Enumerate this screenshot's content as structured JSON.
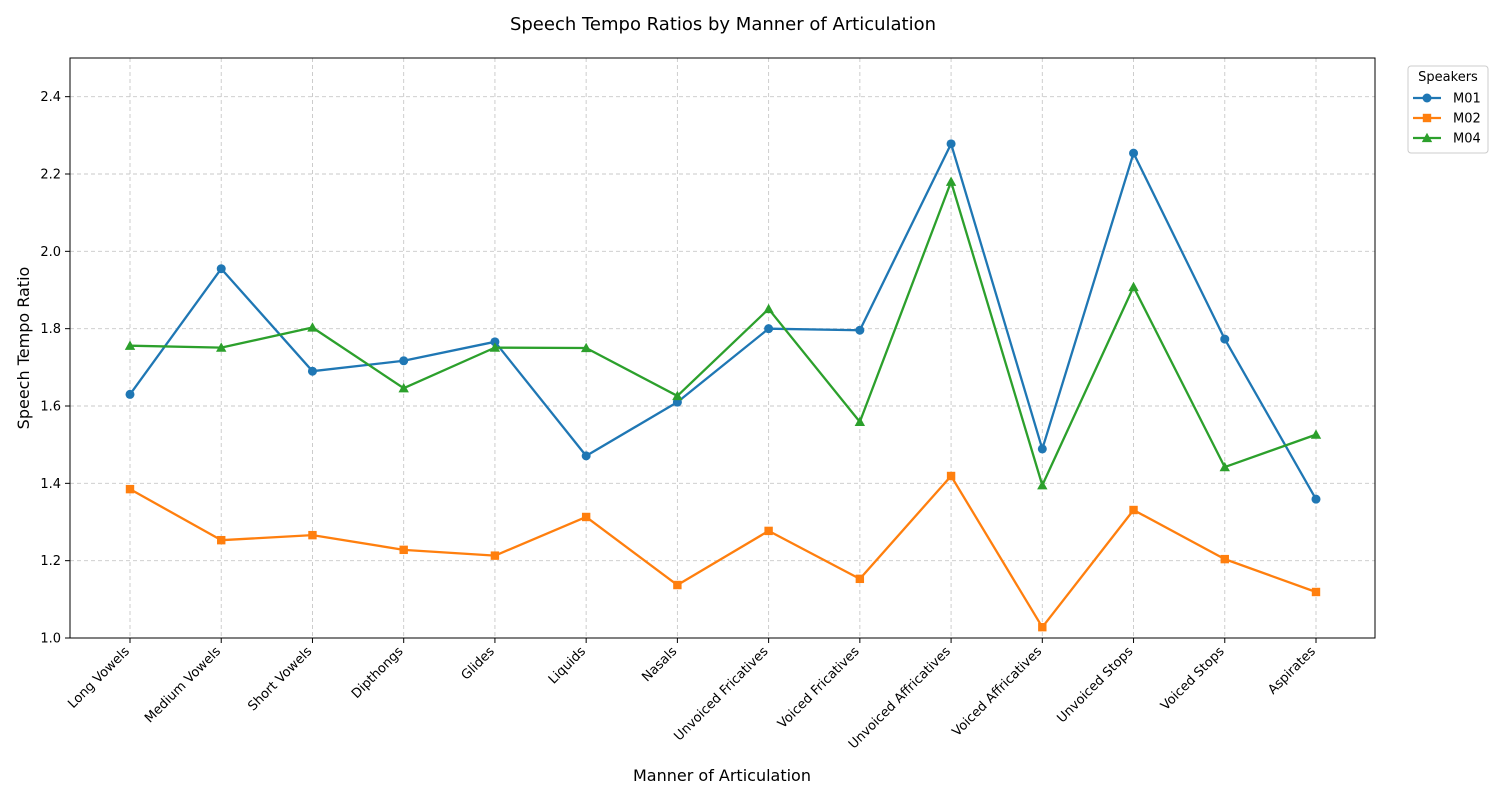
{
  "chart_data": {
    "type": "line",
    "title": "Speech Tempo Ratios by Manner of Articulation",
    "xlabel": "Manner of Articulation",
    "ylabel": "Speech Tempo Ratio",
    "categories": [
      "Long Vowels",
      "Medium Vowels",
      "Short Vowels",
      "Dipthongs",
      "Glides",
      "Liquids",
      "Nasals",
      "Unvoiced Fricatives",
      "Voiced Fricatives",
      "Unvoiced Affricatives",
      "Voiced Affricatives",
      "Unvoiced Stops",
      "Voiced Stops",
      "Aspirates"
    ],
    "ylim": [
      1.0,
      2.5
    ],
    "yticks": [
      "1.0",
      "1.2",
      "1.4",
      "1.6",
      "1.8",
      "2.0",
      "2.2",
      "2.4"
    ],
    "grid": true,
    "legend": {
      "title": "Speakers",
      "placement": "outside top-right"
    },
    "series": [
      {
        "name": "M01",
        "color": "#1f77b4",
        "marker": "circle",
        "values": [
          1.63,
          1.955,
          1.69,
          1.717,
          1.766,
          1.471,
          1.61,
          1.8,
          1.796,
          2.278,
          1.489,
          2.254,
          1.773,
          1.359
        ]
      },
      {
        "name": "M02",
        "color": "#ff7f0e",
        "marker": "square",
        "values": [
          1.385,
          1.253,
          1.266,
          1.228,
          1.213,
          1.313,
          1.137,
          1.277,
          1.153,
          1.419,
          1.028,
          1.331,
          1.204,
          1.119
        ]
      },
      {
        "name": "M04",
        "color": "#2ca02c",
        "marker": "triangle",
        "values": [
          1.756,
          1.751,
          1.803,
          1.646,
          1.751,
          1.75,
          1.626,
          1.851,
          1.559,
          2.18,
          1.395,
          1.908,
          1.442,
          1.526
        ]
      }
    ]
  }
}
